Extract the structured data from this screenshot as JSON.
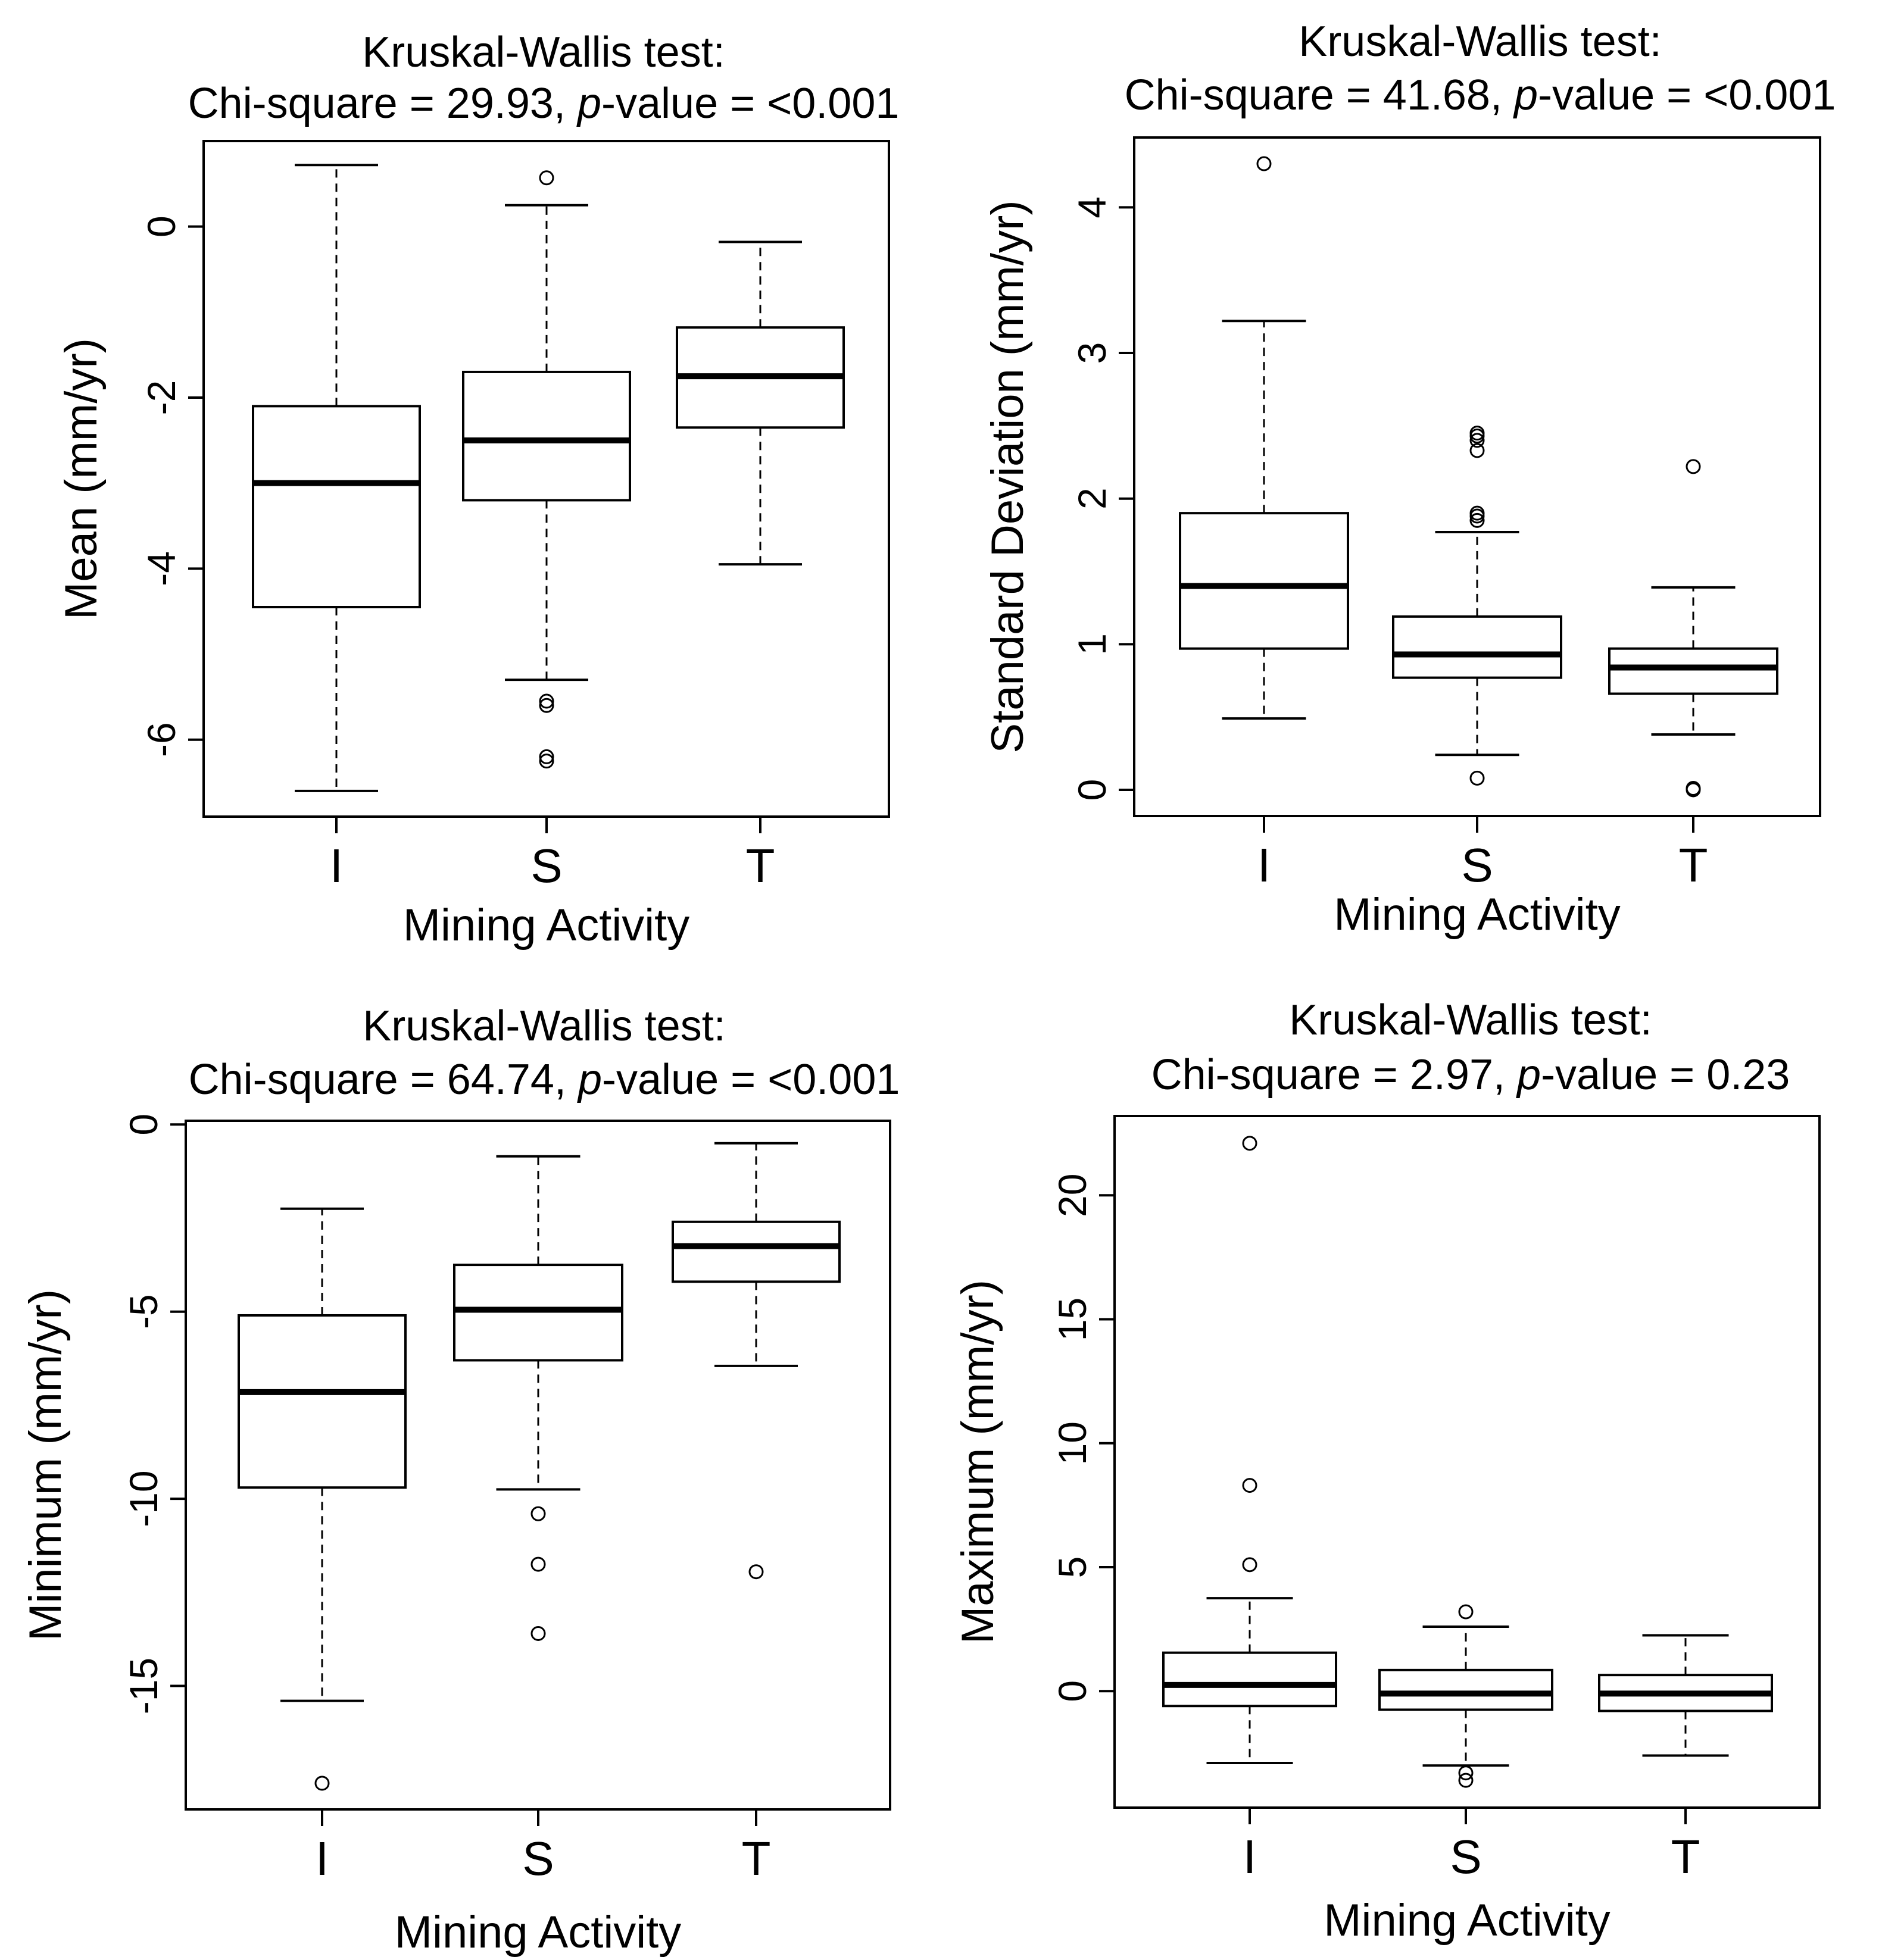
{
  "chart_data": [
    {
      "type": "boxplot",
      "title_line1": "Kruskal-Wallis test:",
      "stat": "Chi-square = 29.93,",
      "p_label": "p",
      "p_text": "-value = <0.001",
      "xlabel": "Mining Activity",
      "ylabel": "Mean (mm/yr)",
      "categories": [
        "I",
        "S",
        "T"
      ],
      "ylim": [
        -6.9,
        1.0
      ],
      "yticks": [
        0,
        -2,
        -4,
        -6
      ],
      "ytick_labels": [
        "0",
        "-2",
        "-4",
        "-6"
      ],
      "boxes": [
        {
          "category": "I",
          "whisker_low": -6.6,
          "q1": -4.45,
          "median": -3.0,
          "q3": -2.1,
          "whisker_high": 0.72,
          "outliers": []
        },
        {
          "category": "S",
          "whisker_low": -5.3,
          "q1": -3.2,
          "median": -2.5,
          "q3": -1.7,
          "whisker_high": 0.25,
          "outliers": [
            -5.55,
            -5.6,
            -6.2,
            -6.25,
            0.57
          ]
        },
        {
          "category": "T",
          "whisker_low": -3.95,
          "q1": -2.35,
          "median": -1.75,
          "q3": -1.18,
          "whisker_high": -0.18,
          "outliers": []
        }
      ]
    },
    {
      "type": "boxplot",
      "title_line1": "Kruskal-Wallis test:",
      "stat": "Chi-square = 41.68,",
      "p_label": "p",
      "p_text": "-value = <0.001",
      "xlabel": "Mining Activity",
      "ylabel": "Standard Deviation (mm/yr)",
      "categories": [
        "I",
        "S",
        "T"
      ],
      "ylim": [
        -0.18,
        4.48
      ],
      "yticks": [
        0,
        1,
        2,
        3,
        4
      ],
      "ytick_labels": [
        "0",
        "1",
        "2",
        "3",
        "4"
      ],
      "boxes": [
        {
          "category": "I",
          "whisker_low": 0.49,
          "q1": 0.97,
          "median": 1.4,
          "q3": 1.9,
          "whisker_high": 3.22,
          "outliers": [
            4.3
          ]
        },
        {
          "category": "S",
          "whisker_low": 0.24,
          "q1": 0.77,
          "median": 0.93,
          "q3": 1.19,
          "whisker_high": 1.77,
          "outliers": [
            0.08,
            1.85,
            1.88,
            1.9,
            2.33,
            2.4,
            2.43,
            2.45
          ]
        },
        {
          "category": "T",
          "whisker_low": 0.38,
          "q1": 0.66,
          "median": 0.84,
          "q3": 0.97,
          "whisker_high": 1.39,
          "outliers": [
            0.0,
            0.01,
            2.22
          ]
        }
      ]
    },
    {
      "type": "boxplot",
      "title_line1": "Kruskal-Wallis test:",
      "stat": "Chi-square = 64.74,",
      "p_label": "p",
      "p_text": "-value = <0.001",
      "xlabel": "Mining Activity",
      "ylabel": "Minimum (mm/yr)",
      "categories": [
        "I",
        "S",
        "T"
      ],
      "ylim": [
        -18.3,
        0.1
      ],
      "yticks": [
        0,
        -5,
        -10,
        -15
      ],
      "ytick_labels": [
        "0",
        "-5",
        "-10",
        "-15"
      ],
      "boxes": [
        {
          "category": "I",
          "whisker_low": -15.4,
          "q1": -9.7,
          "median": -7.15,
          "q3": -5.1,
          "whisker_high": -2.25,
          "outliers": [
            -17.6
          ]
        },
        {
          "category": "S",
          "whisker_low": -9.75,
          "q1": -6.3,
          "median": -4.95,
          "q3": -3.75,
          "whisker_high": -0.85,
          "outliers": [
            -10.4,
            -11.75,
            -13.6
          ]
        },
        {
          "category": "T",
          "whisker_low": -6.45,
          "q1": -4.2,
          "median": -3.25,
          "q3": -2.6,
          "whisker_high": -0.5,
          "outliers": [
            -11.95
          ]
        }
      ]
    },
    {
      "type": "boxplot",
      "title_line1": "Kruskal-Wallis test:",
      "stat": "Chi-square = 2.97,",
      "p_label": "p",
      "p_text": "-value = 0.23",
      "xlabel": "Mining Activity",
      "ylabel": "Maximum (mm/yr)",
      "categories": [
        "I",
        "S",
        "T"
      ],
      "ylim": [
        -4.7,
        23.2
      ],
      "yticks": [
        0,
        5,
        10,
        15,
        20
      ],
      "ytick_labels": [
        "0",
        "5",
        "10",
        "15",
        "20"
      ],
      "boxes": [
        {
          "category": "I",
          "whisker_low": -2.9,
          "q1": -0.6,
          "median": 0.25,
          "q3": 1.55,
          "whisker_high": 3.75,
          "outliers": [
            5.1,
            8.3,
            22.1
          ]
        },
        {
          "category": "S",
          "whisker_low": -3.0,
          "q1": -0.75,
          "median": -0.1,
          "q3": 0.85,
          "whisker_high": 2.6,
          "outliers": [
            -3.3,
            -3.6,
            3.2
          ]
        },
        {
          "category": "T",
          "whisker_low": -2.6,
          "q1": -0.8,
          "median": -0.1,
          "q3": 0.65,
          "whisker_high": 2.25,
          "outliers": []
        }
      ]
    }
  ]
}
